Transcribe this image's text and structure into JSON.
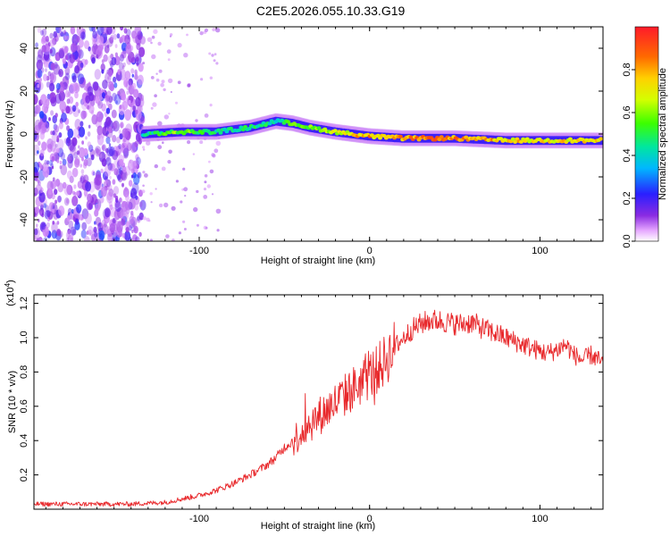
{
  "title": "C2E5.2026.055.10.33.G19",
  "colors": {
    "snr_line": "#e8282b",
    "axis": "#000000",
    "background": "#ffffff"
  },
  "chart_data": [
    {
      "type": "heatmap",
      "xlabel": "Height of straight line (km)",
      "ylabel": "Frequency (Hz)",
      "xlim": [
        -197,
        137
      ],
      "ylim": [
        -50,
        50
      ],
      "xticks": [
        -100,
        0,
        100
      ],
      "xtick_labels": [
        "-100",
        "0",
        "100"
      ],
      "yticks": [
        -40,
        -20,
        0,
        20,
        40
      ],
      "ytick_labels": [
        "-40",
        "-20",
        "0",
        "20",
        "40"
      ],
      "ridge": {
        "description": "dominant frequency trace",
        "x": [
          -133,
          -110,
          -90,
          -70,
          -55,
          -45,
          -35,
          -20,
          -10,
          0,
          20,
          50,
          80,
          100,
          120,
          137
        ],
        "y": [
          0,
          1,
          1,
          3,
          6,
          5,
          3,
          1,
          0,
          -1,
          -2,
          -2,
          -3,
          -3,
          -3,
          -3
        ],
        "amplitude": [
          0.45,
          0.7,
          0.5,
          0.55,
          0.5,
          0.6,
          0.65,
          0.75,
          0.85,
          0.9,
          0.92,
          0.95,
          0.85,
          0.8,
          0.85,
          0.8
        ]
      },
      "noise_region_x": [
        -197,
        -133
      ],
      "colorbar": {
        "label": "Normalized spectral amplitude",
        "range": [
          0.0,
          1.0
        ],
        "ticks": [
          0.0,
          0.2,
          0.4,
          0.6,
          0.8
        ],
        "tick_labels": [
          "0.0",
          "0.2",
          "0.4",
          "0.6",
          "0.8"
        ]
      }
    },
    {
      "type": "line",
      "xlabel": "Height of straight line (km)",
      "ylabel": "SNR (10 * v/v)",
      "y_multiplier": "(x10",
      "y_multiplier_exp": "4",
      "y_multiplier_close": ")",
      "xlim": [
        -197,
        137
      ],
      "ylim": [
        0.0,
        1.25
      ],
      "xticks": [
        -100,
        0,
        100
      ],
      "xtick_labels": [
        "-100",
        "0",
        "100"
      ],
      "yticks": [
        0.2,
        0.4,
        0.6,
        0.8,
        1.0,
        1.2
      ],
      "ytick_labels": [
        "0.2",
        "0.4",
        "0.6",
        "0.8",
        "1.0",
        "1.2"
      ],
      "series": [
        {
          "name": "SNR",
          "x": [
            -197,
            -180,
            -160,
            -140,
            -120,
            -110,
            -100,
            -90,
            -80,
            -70,
            -60,
            -55,
            -50,
            -45,
            -40,
            -35,
            -30,
            -25,
            -20,
            -15,
            -10,
            -5,
            0,
            5,
            10,
            15,
            20,
            25,
            30,
            35,
            40,
            45,
            50,
            55,
            60,
            65,
            70,
            75,
            80,
            85,
            90,
            95,
            100,
            105,
            110,
            115,
            120,
            125,
            130,
            137
          ],
          "y": [
            0.03,
            0.03,
            0.03,
            0.03,
            0.04,
            0.06,
            0.08,
            0.11,
            0.15,
            0.2,
            0.26,
            0.3,
            0.36,
            0.4,
            0.45,
            0.5,
            0.54,
            0.58,
            0.62,
            0.66,
            0.7,
            0.74,
            0.78,
            0.82,
            0.88,
            0.95,
            1.0,
            1.05,
            1.08,
            1.1,
            1.1,
            1.09,
            1.08,
            1.08,
            1.09,
            1.06,
            1.04,
            1.02,
            1.0,
            0.98,
            0.96,
            0.94,
            0.92,
            0.91,
            0.93,
            0.96,
            0.9,
            0.87,
            0.9,
            0.85
          ]
        }
      ]
    }
  ]
}
